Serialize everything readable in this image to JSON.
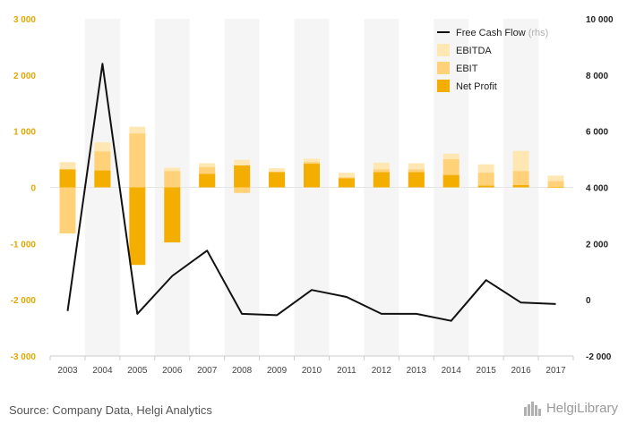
{
  "chart_data": {
    "type": "bar",
    "categories": [
      "2003",
      "2004",
      "2005",
      "2006",
      "2007",
      "2008",
      "2009",
      "2010",
      "2011",
      "2012",
      "2013",
      "2014",
      "2015",
      "2016",
      "2017"
    ],
    "series": [
      {
        "name": "EBITDA",
        "axis": "left",
        "kind": "bar",
        "color": "#ffe7b3",
        "values": [
          450,
          800,
          1080,
          350,
          430,
          490,
          340,
          510,
          260,
          440,
          430,
          600,
          410,
          650,
          210
        ]
      },
      {
        "name": "EBIT",
        "axis": "left",
        "kind": "bar",
        "color": "#ffd27a",
        "values": [
          -820,
          640,
          960,
          290,
          360,
          -100,
          280,
          450,
          180,
          320,
          320,
          500,
          260,
          290,
          110
        ]
      },
      {
        "name": "Net Profit",
        "axis": "left",
        "kind": "bar",
        "color": "#f4ae00",
        "values": [
          320,
          300,
          -1380,
          -980,
          240,
          390,
          270,
          420,
          160,
          270,
          270,
          220,
          30,
          40,
          0
        ]
      },
      {
        "name": "Free Cash Flow",
        "axis": "right",
        "kind": "line",
        "color": "#111111",
        "values": [
          -400,
          8400,
          -500,
          850,
          1750,
          -500,
          -550,
          350,
          100,
          -500,
          -500,
          -750,
          700,
          -100,
          -150
        ]
      }
    ],
    "left_axis": {
      "ylim": [
        -3000,
        3000
      ],
      "ticks": [
        3000,
        2000,
        1000,
        0,
        -1000,
        -2000,
        -3000
      ],
      "tick_labels": [
        "3 000",
        "2 000",
        "1 000",
        "0",
        "-1 000",
        "-2 000",
        "-3 000"
      ]
    },
    "right_axis": {
      "ylim": [
        -2000,
        10000
      ],
      "ticks": [
        10000,
        8000,
        6000,
        4000,
        2000,
        0,
        -2000
      ],
      "tick_labels": [
        "10 000",
        "8 000",
        "6 000",
        "4 000",
        "2 000",
        "0",
        "-2 000"
      ]
    },
    "legend": {
      "placement": "top-right",
      "entries": [
        {
          "label": "Free Cash Flow",
          "suffix": "(rhs)",
          "symbol": "line",
          "color": "#111111"
        },
        {
          "label": "EBITDA",
          "suffix": "",
          "symbol": "box",
          "color": "#ffe7b3"
        },
        {
          "label": "EBIT",
          "suffix": "",
          "symbol": "box",
          "color": "#ffd27a"
        },
        {
          "label": "Net Profit",
          "suffix": "",
          "symbol": "box",
          "color": "#f4ae00"
        }
      ]
    },
    "grid": false,
    "background_band_color": "#f5f5f5"
  },
  "footer": {
    "source": "Source: Company Data, Helgi Analytics",
    "logo_text": "HelgiLibrary"
  }
}
